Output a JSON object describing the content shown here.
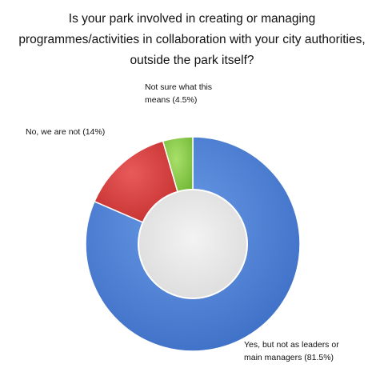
{
  "chart_data": {
    "type": "pie",
    "title_lines": [
      "Is your park involved in creating or managing",
      "programmes/activities in collaboration with your city authorities,",
      "outside the park itself?"
    ],
    "slices": [
      {
        "label_lines": [
          "Yes, but not as leaders or",
          "main managers (81.5%)"
        ],
        "value": 81.5,
        "color": "#4a7fd6"
      },
      {
        "label_lines": [
          "No, we are not (14%)"
        ],
        "value": 14,
        "color": "#d93b3b"
      },
      {
        "label_lines": [
          "Not sure what this",
          "means (4.5%)"
        ],
        "value": 4.5,
        "color": "#8ed14a"
      }
    ],
    "hole_color": "#e9e9e9"
  }
}
